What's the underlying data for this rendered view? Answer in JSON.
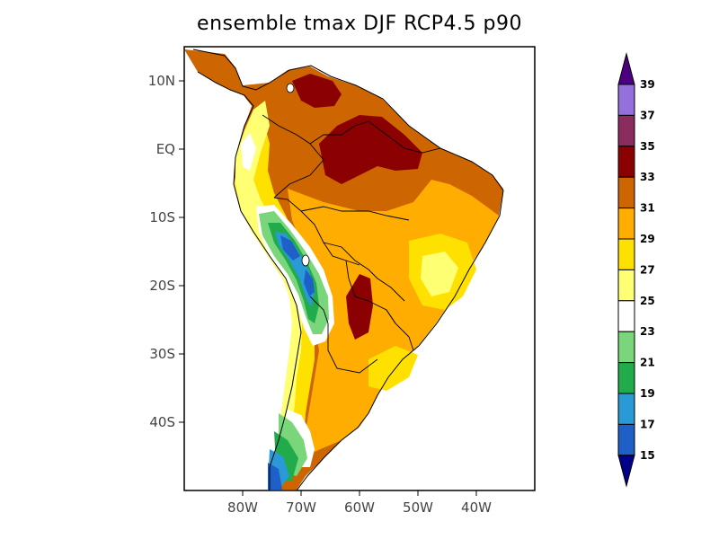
{
  "title": "ensemble tmax DJF RCP4.5 p90",
  "map": {
    "lon_range": [
      -90,
      -30
    ],
    "lat_range": [
      -50,
      15
    ],
    "lat_ticks": [
      {
        "value": 10,
        "label": "10N"
      },
      {
        "value": 0,
        "label": "EQ"
      },
      {
        "value": -10,
        "label": "10S"
      },
      {
        "value": -20,
        "label": "20S"
      },
      {
        "value": -30,
        "label": "30S"
      },
      {
        "value": -40,
        "label": "40S"
      }
    ],
    "lon_ticks": [
      {
        "value": -80,
        "label": "80W"
      },
      {
        "value": -70,
        "label": "70W"
      },
      {
        "value": -60,
        "label": "60W"
      },
      {
        "value": -50,
        "label": "50W"
      },
      {
        "value": -40,
        "label": "40W"
      }
    ]
  },
  "colorbar": {
    "levels": [
      15,
      17,
      19,
      21,
      23,
      25,
      27,
      29,
      31,
      33,
      35,
      37,
      39
    ],
    "colors": [
      "#1f5fc8",
      "#2a9ad6",
      "#22ab4b",
      "#7ad67a",
      "#ffffff",
      "#ffff73",
      "#ffe100",
      "#ffad00",
      "#cd6600",
      "#8b0000",
      "#8b2c5f",
      "#9370db"
    ],
    "under_color": "#00008b",
    "over_color": "#4b0082",
    "labels": [
      "15",
      "17",
      "19",
      "21",
      "23",
      "25",
      "27",
      "29",
      "31",
      "33",
      "35",
      "37",
      "39"
    ]
  }
}
